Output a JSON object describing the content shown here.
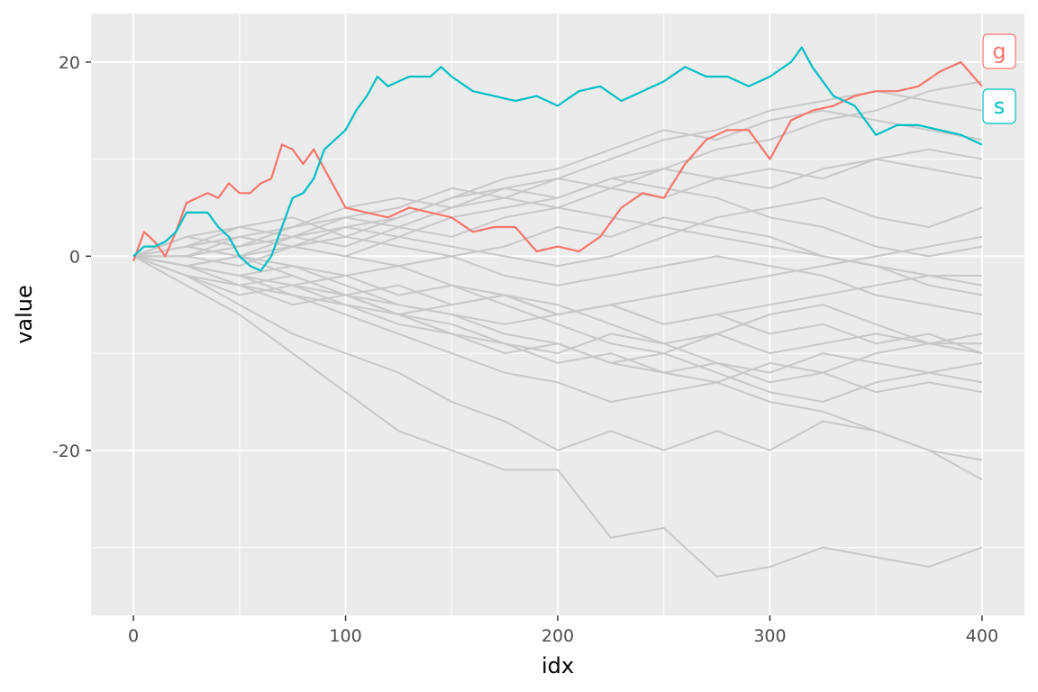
{
  "chart_data": {
    "type": "line",
    "xlabel": "idx",
    "ylabel": "value",
    "xlim": [
      -20,
      420
    ],
    "ylim": [
      -37,
      25
    ],
    "x_ticks": [
      0,
      100,
      200,
      300,
      400
    ],
    "x_tick_labels": [
      "0",
      "100",
      "200",
      "300",
      "400"
    ],
    "y_ticks": [
      -20,
      0,
      20
    ],
    "y_tick_labels": [
      "-20",
      "0",
      "20"
    ],
    "grid": true,
    "panel_background": "#ebebeb",
    "background_series_color": "#c8c8c8",
    "series": [
      {
        "name": "g",
        "color": "#f8766d",
        "highlight": true,
        "x": [
          0,
          5,
          10,
          15,
          20,
          25,
          30,
          35,
          40,
          45,
          50,
          55,
          60,
          65,
          70,
          75,
          80,
          85,
          90,
          95,
          100,
          110,
          120,
          130,
          140,
          150,
          160,
          170,
          180,
          190,
          200,
          210,
          220,
          230,
          240,
          250,
          260,
          270,
          280,
          290,
          300,
          310,
          320,
          330,
          340,
          350,
          360,
          370,
          380,
          390,
          400
        ],
        "y": [
          -0.5,
          2.5,
          1.5,
          0,
          2.5,
          5.5,
          6,
          6.5,
          6,
          7.5,
          6.5,
          6.5,
          7.5,
          8,
          11.5,
          11,
          9.5,
          11,
          9,
          7,
          5,
          4.5,
          4,
          5,
          4.5,
          4,
          2.5,
          3,
          3,
          0.5,
          1,
          0.5,
          2,
          5,
          6.5,
          6,
          9.5,
          12,
          13,
          13,
          10,
          14,
          15,
          15.5,
          16.5,
          17,
          17,
          17.5,
          19,
          20,
          17.5
        ]
      },
      {
        "name": "s",
        "color": "#00bfc4",
        "highlight": true,
        "x": [
          0,
          5,
          10,
          15,
          20,
          25,
          30,
          35,
          40,
          45,
          50,
          55,
          60,
          65,
          70,
          75,
          80,
          85,
          90,
          95,
          100,
          105,
          110,
          115,
          120,
          130,
          140,
          145,
          150,
          160,
          170,
          180,
          190,
          200,
          210,
          220,
          230,
          240,
          250,
          260,
          270,
          280,
          290,
          300,
          310,
          315,
          320,
          330,
          340,
          350,
          360,
          370,
          380,
          390,
          400
        ],
        "y": [
          0,
          1,
          1,
          1.5,
          2.5,
          4.5,
          4.5,
          4.5,
          3,
          2,
          0,
          -1,
          -1.5,
          0,
          3,
          6,
          6.5,
          8,
          11,
          12,
          13,
          15,
          16.5,
          18.5,
          17.5,
          18.5,
          18.5,
          19.5,
          18.5,
          17,
          16.5,
          16,
          16.5,
          15.5,
          17,
          17.5,
          16,
          17,
          18,
          19.5,
          18.5,
          18.5,
          17.5,
          18.5,
          20,
          21.5,
          19.5,
          16.5,
          15.5,
          12.5,
          13.5,
          13.5,
          13,
          12.5,
          11.5
        ]
      }
    ],
    "labels": [
      {
        "text": "g",
        "series": "g",
        "color": "#f8766d"
      },
      {
        "text": "s",
        "series": "s",
        "color": "#00bfc4"
      }
    ],
    "background_series": [
      {
        "x": [
          0,
          25,
          50,
          75,
          100,
          125,
          150,
          175,
          200,
          225,
          250,
          275,
          300,
          325,
          350,
          375,
          400
        ],
        "y": [
          0,
          -1,
          -2,
          -3,
          -4,
          -3,
          -5,
          -4,
          -6,
          -5,
          -7,
          -6,
          -8,
          -7,
          -9,
          -8,
          -10
        ]
      },
      {
        "x": [
          0,
          25,
          50,
          75,
          100,
          125,
          150,
          175,
          200,
          225,
          250,
          275,
          300,
          325,
          350,
          375,
          400
        ],
        "y": [
          0,
          -3,
          -6,
          -10,
          -14,
          -18,
          -20,
          -22,
          -22,
          -29,
          -28,
          -33,
          -32,
          -30,
          -31,
          -32,
          -30
        ]
      },
      {
        "x": [
          0,
          25,
          50,
          75,
          100,
          125,
          150,
          175,
          200,
          225,
          250,
          275,
          300,
          325,
          350,
          375,
          400
        ],
        "y": [
          0,
          -2,
          -5,
          -8,
          -10,
          -12,
          -15,
          -17,
          -20,
          -18,
          -20,
          -18,
          -20,
          -17,
          -18,
          -20,
          -23
        ]
      },
      {
        "x": [
          0,
          25,
          50,
          75,
          100,
          125,
          150,
          175,
          200,
          225,
          250,
          275,
          300,
          325,
          350,
          375,
          400
        ],
        "y": [
          0,
          1,
          2,
          1,
          0,
          2,
          4,
          5,
          6,
          8,
          9,
          11,
          12,
          14,
          15,
          17,
          18
        ]
      },
      {
        "x": [
          0,
          25,
          50,
          75,
          100,
          125,
          150,
          175,
          200,
          225,
          250,
          275,
          300,
          325,
          350,
          375,
          400
        ],
        "y": [
          0,
          0,
          -1,
          1,
          2,
          4,
          6,
          7,
          8,
          10,
          12,
          13,
          15,
          16,
          17,
          16,
          15
        ]
      },
      {
        "x": [
          0,
          25,
          50,
          75,
          100,
          125,
          150,
          175,
          200,
          225,
          250,
          275,
          300,
          325,
          350,
          375,
          400
        ],
        "y": [
          0,
          -1,
          0,
          2,
          1,
          3,
          2,
          4,
          5,
          7,
          6,
          8,
          9,
          8,
          10,
          11,
          10
        ]
      },
      {
        "x": [
          0,
          25,
          50,
          75,
          100,
          125,
          150,
          175,
          200,
          225,
          250,
          275,
          300,
          325,
          350,
          375,
          400
        ],
        "y": [
          0,
          -2,
          -3,
          -4,
          -6,
          -8,
          -10,
          -12,
          -13,
          -15,
          -14,
          -13,
          -15,
          -16,
          -18,
          -20,
          -21
        ]
      },
      {
        "x": [
          0,
          25,
          50,
          75,
          100,
          125,
          150,
          175,
          200,
          225,
          250,
          275,
          300,
          325,
          350,
          375,
          400
        ],
        "y": [
          0,
          1,
          0,
          -2,
          -4,
          -5,
          -6,
          -7,
          -6,
          -5,
          -4,
          -3,
          -2,
          -1,
          0,
          1,
          2
        ]
      },
      {
        "x": [
          0,
          25,
          50,
          75,
          100,
          125,
          150,
          175,
          200,
          225,
          250,
          275,
          300,
          325,
          350,
          375,
          400
        ],
        "y": [
          0,
          -1,
          -3,
          -2,
          -4,
          -6,
          -7,
          -9,
          -11,
          -10,
          -12,
          -11,
          -13,
          -12,
          -10,
          -9,
          -8
        ]
      },
      {
        "x": [
          0,
          25,
          50,
          75,
          100,
          125,
          150,
          175,
          200,
          225,
          250,
          275,
          300,
          325,
          350,
          375,
          400
        ],
        "y": [
          0,
          2,
          3,
          2,
          4,
          5,
          7,
          6,
          5,
          4,
          3,
          2,
          1,
          0,
          -1,
          -2,
          -2
        ]
      },
      {
        "x": [
          0,
          25,
          50,
          75,
          100,
          125,
          150,
          175,
          200,
          225,
          250,
          275,
          300,
          325,
          350,
          375,
          400
        ],
        "y": [
          0,
          -1,
          -2,
          -3,
          -2,
          -4,
          -3,
          -5,
          -7,
          -9,
          -10,
          -8,
          -6,
          -5,
          -7,
          -9,
          -10
        ]
      },
      {
        "x": [
          0,
          25,
          50,
          75,
          100,
          125,
          150,
          175,
          200,
          225,
          250,
          275,
          300,
          325,
          350,
          375,
          400
        ],
        "y": [
          0,
          1,
          2,
          3,
          4,
          3,
          5,
          6,
          8,
          7,
          9,
          8,
          7,
          9,
          10,
          9,
          8
        ]
      },
      {
        "x": [
          0,
          25,
          50,
          75,
          100,
          125,
          150,
          175,
          200,
          225,
          250,
          275,
          300,
          325,
          350,
          375,
          400
        ],
        "y": [
          0,
          -1,
          -2,
          -1,
          -3,
          -5,
          -6,
          -8,
          -9,
          -11,
          -12,
          -13,
          -11,
          -12,
          -14,
          -13,
          -14
        ]
      },
      {
        "x": [
          0,
          25,
          50,
          75,
          100,
          125,
          150,
          175,
          200,
          225,
          250,
          275,
          300,
          325,
          350,
          375,
          400
        ],
        "y": [
          0,
          0,
          1,
          2,
          3,
          2,
          1,
          0,
          -1,
          0,
          2,
          4,
          5,
          6,
          4,
          3,
          5
        ]
      },
      {
        "x": [
          0,
          25,
          50,
          75,
          100,
          125,
          150,
          175,
          200,
          225,
          250,
          275,
          300,
          325,
          350,
          375,
          400
        ],
        "y": [
          0,
          -2,
          -4,
          -3,
          -5,
          -7,
          -8,
          -9,
          -10,
          -8,
          -9,
          -11,
          -12,
          -10,
          -11,
          -12,
          -13
        ]
      },
      {
        "x": [
          0,
          25,
          50,
          75,
          100,
          125,
          150,
          175,
          200,
          225,
          250,
          275,
          300,
          325,
          350,
          375,
          400
        ],
        "y": [
          0,
          1,
          3,
          4,
          2,
          1,
          0,
          -2,
          -3,
          -2,
          -1,
          0,
          -1,
          -2,
          -4,
          -5,
          -6
        ]
      },
      {
        "x": [
          0,
          25,
          50,
          75,
          100,
          125,
          150,
          175,
          200,
          225,
          250,
          275,
          300,
          325,
          350,
          375,
          400
        ],
        "y": [
          0,
          -1,
          0,
          1,
          0,
          -1,
          -3,
          -4,
          -5,
          -7,
          -9,
          -8,
          -10,
          -9,
          -8,
          -9,
          -9
        ]
      },
      {
        "x": [
          0,
          25,
          50,
          75,
          100,
          125,
          150,
          175,
          200,
          225,
          250,
          275,
          300,
          325,
          350,
          375,
          400
        ],
        "y": [
          0,
          2,
          1,
          3,
          5,
          6,
          5,
          7,
          6,
          8,
          7,
          6,
          4,
          3,
          1,
          0,
          1
        ]
      },
      {
        "x": [
          0,
          25,
          50,
          75,
          100,
          125,
          150,
          175,
          200,
          225,
          250,
          275,
          300,
          325,
          350,
          375,
          400
        ],
        "y": [
          0,
          -1,
          -2,
          -4,
          -5,
          -6,
          -5,
          -4,
          -6,
          -5,
          -7,
          -6,
          -5,
          -4,
          -3,
          -2,
          -3
        ]
      },
      {
        "x": [
          0,
          25,
          50,
          75,
          100,
          125,
          150,
          175,
          200,
          225,
          250,
          275,
          300,
          325,
          350,
          375,
          400
        ],
        "y": [
          0,
          1,
          0,
          -1,
          -2,
          -1,
          0,
          1,
          3,
          2,
          4,
          3,
          2,
          0,
          -1,
          -3,
          -4
        ]
      },
      {
        "x": [
          0,
          25,
          50,
          75,
          100,
          125,
          150,
          175,
          200,
          225,
          250,
          275,
          300,
          325,
          350,
          375,
          400
        ],
        "y": [
          0,
          -2,
          -3,
          -5,
          -4,
          -6,
          -8,
          -10,
          -9,
          -11,
          -10,
          -12,
          -14,
          -15,
          -13,
          -12,
          -11
        ]
      },
      {
        "x": [
          0,
          25,
          50,
          75,
          100,
          125,
          150,
          175,
          200,
          225,
          250,
          275,
          300,
          325,
          350,
          375,
          400
        ],
        "y": [
          0,
          0,
          2,
          1,
          3,
          4,
          6,
          8,
          9,
          11,
          13,
          12,
          14,
          15,
          14,
          13,
          12
        ]
      }
    ]
  }
}
